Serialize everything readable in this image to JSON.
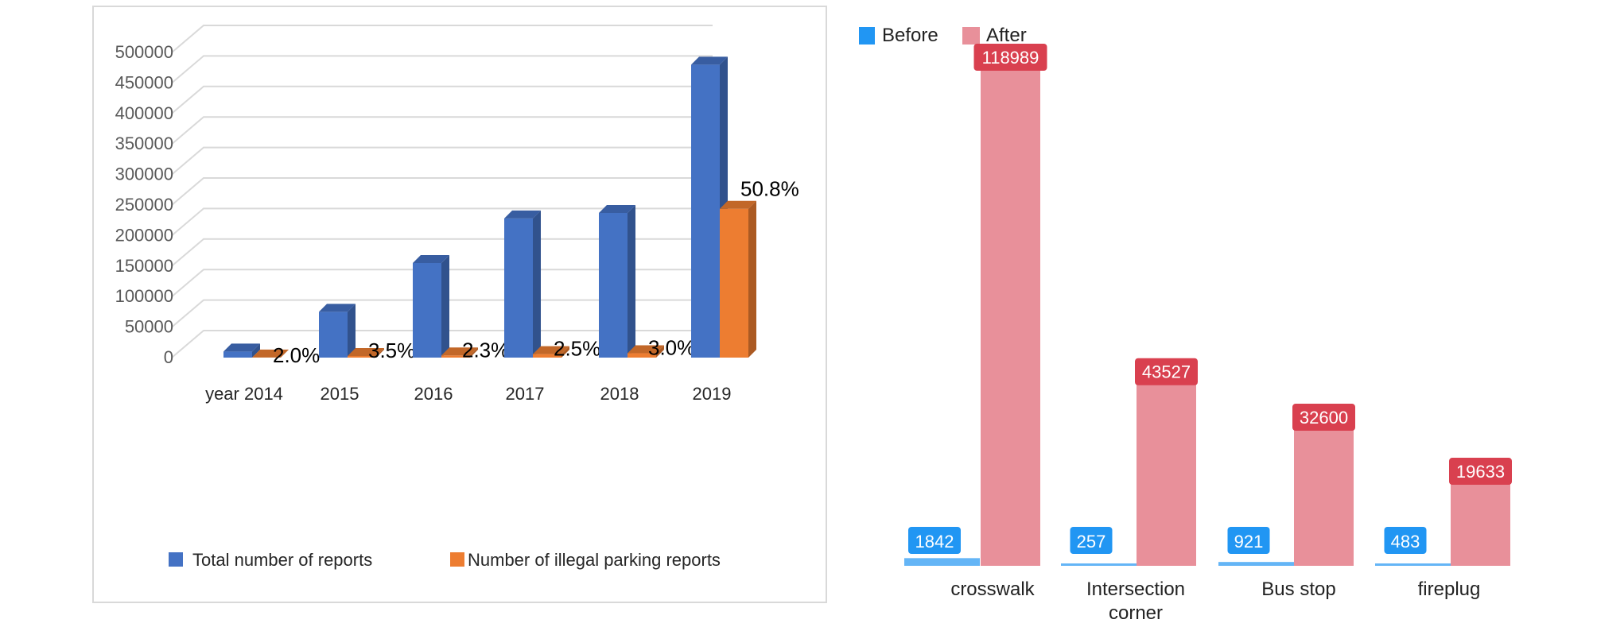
{
  "chart_data": [
    {
      "type": "bar",
      "title": "",
      "xlabel": "",
      "ylabel": "",
      "categories": [
        "year 2014",
        "2015",
        "2016",
        "2017",
        "2018",
        "2019"
      ],
      "series": [
        {
          "name": "Total number of reports",
          "values": [
            10000,
            75000,
            155000,
            228000,
            237000,
            480000
          ]
        },
        {
          "name": "Number of illegal parking reports",
          "values": [
            200,
            2625,
            3565,
            5700,
            7110,
            243840
          ]
        }
      ],
      "data_labels": [
        "2.0%",
        "3.5%",
        "2.3%",
        "2.5%",
        "3.0%",
        "50.8%"
      ],
      "yticks": [
        "0",
        "50000",
        "100000",
        "150000",
        "200000",
        "250000",
        "300000",
        "350000",
        "400000",
        "450000",
        "500000"
      ],
      "ylim": [
        0,
        500000
      ],
      "grid": true,
      "legend_position": "bottom",
      "colors": {
        "total": "#4472C4",
        "illegal": "#ED7D31"
      }
    },
    {
      "type": "bar",
      "title": "",
      "xlabel": "",
      "ylabel": "",
      "categories": [
        "crosswalk",
        "Intersection corner",
        "Bus stop",
        "fireplug"
      ],
      "category_lines": [
        [
          "crosswalk"
        ],
        [
          "Intersection",
          "corner"
        ],
        [
          "Bus stop"
        ],
        [
          "fireplug"
        ]
      ],
      "series": [
        {
          "name": "Before",
          "values": [
            1842,
            257,
            921,
            483
          ],
          "labels": [
            "1842",
            "257",
            "921",
            "483"
          ]
        },
        {
          "name": "After",
          "values": [
            118989,
            43527,
            32600,
            19633
          ],
          "labels": [
            "118989",
            "43527",
            "32600",
            "19633"
          ]
        }
      ],
      "ylim": [
        0,
        130000
      ],
      "grid": false,
      "legend_position": "top-left",
      "colors": {
        "before": "#2196F3",
        "before_bar": "#64B5F6",
        "after": "#E8909A",
        "after_label": "#D9404F"
      }
    }
  ]
}
